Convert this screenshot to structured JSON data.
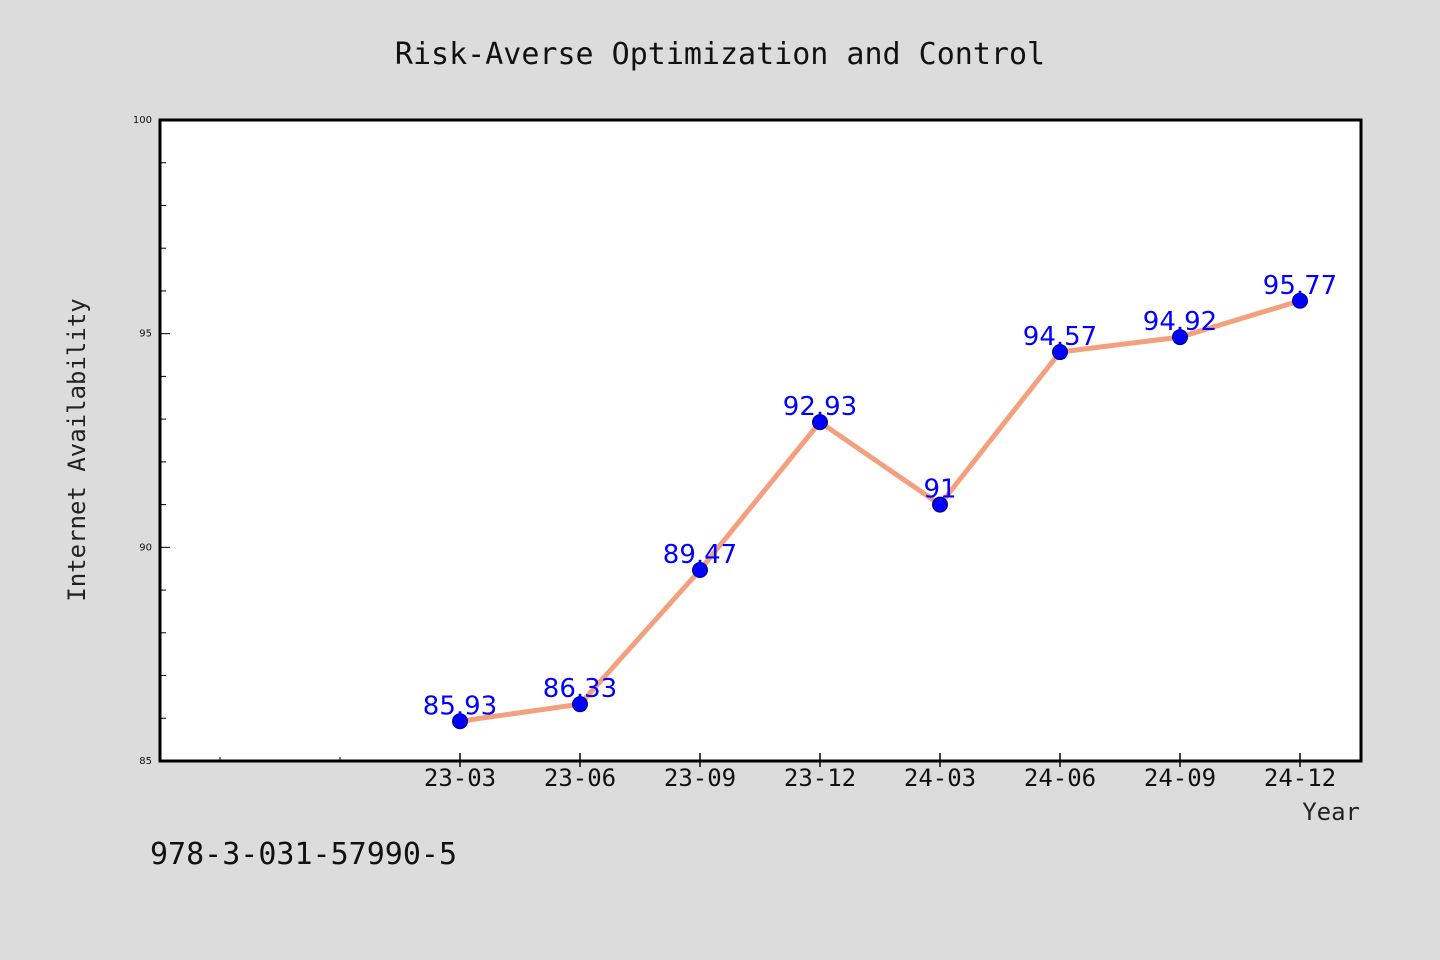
{
  "chart_data": {
    "type": "line",
    "title": "Risk-Averse Optimization and Control",
    "xlabel": "Year",
    "ylabel": "Internet Availability",
    "categories": [
      "23-03",
      "23-06",
      "23-09",
      "23-12",
      "24-03",
      "24-06",
      "24-09",
      "24-12"
    ],
    "series": [
      {
        "values": [
          85.93,
          86.33,
          89.47,
          92.93,
          91,
          94.57,
          94.92,
          95.77
        ],
        "labels": [
          "85.93",
          "86.33",
          "89.47",
          "92.93",
          "91",
          "94.57",
          "94.92",
          "95.77"
        ],
        "line_color": "#f4a07e",
        "marker_color": "#0000ff"
      }
    ],
    "ylim": [
      85,
      100
    ],
    "yticks": [
      "85",
      "90",
      "95",
      "100"
    ],
    "grid": false,
    "legend": "none"
  },
  "footer": {
    "isbn": "978-3-031-57990-5"
  },
  "colors": {
    "background": "#dcdcdc",
    "plot_background": "#ffffff",
    "line": "#f4a07e",
    "marker": "#0000ff",
    "data_label": "#0000ff"
  }
}
